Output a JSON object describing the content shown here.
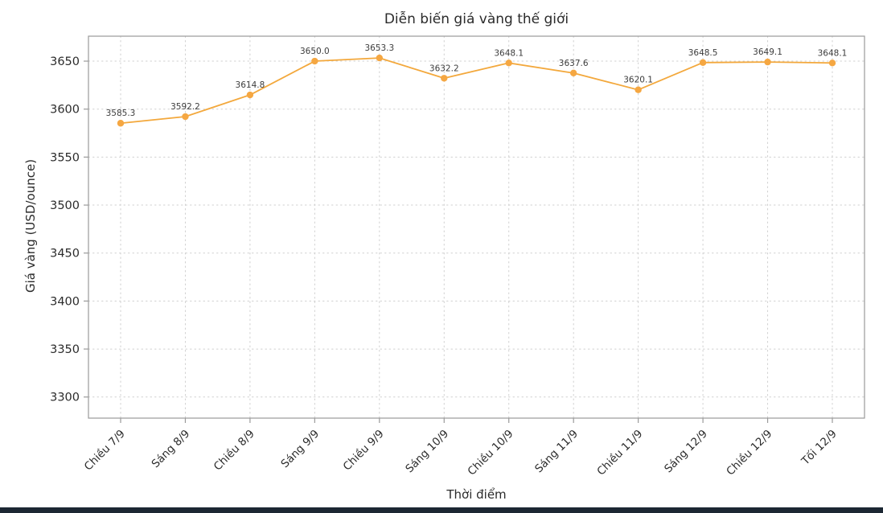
{
  "chart_data": {
    "type": "line",
    "title": "Diễn biến giá vàng thế giới",
    "xlabel": "Thời điểm",
    "ylabel": "Giá vàng (USD/ounce)",
    "categories": [
      "Chiều 7/9",
      "Sáng 8/9",
      "Chiều 8/9",
      "Sáng 9/9",
      "Chiều 9/9",
      "Sáng 10/9",
      "Chiều 10/9",
      "Sáng 11/9",
      "Chiều 11/9",
      "Sáng 12/9",
      "Chiều 12/9",
      "Tối 12/9"
    ],
    "values": [
      3585.3,
      3592.2,
      3614.8,
      3650.0,
      3653.3,
      3632.2,
      3648.1,
      3637.6,
      3620.1,
      3648.5,
      3649.1,
      3648.1
    ],
    "value_labels": [
      "3585.3",
      "3592.2",
      "3614.8",
      "3650.0",
      "3653.3",
      "3632.2",
      "3648.1",
      "3637.6",
      "3620.1",
      "3648.5",
      "3649.1",
      "3648.1"
    ],
    "ylim": [
      3278,
      3676
    ],
    "yticks": [
      3300,
      3350,
      3400,
      3450,
      3500,
      3550,
      3600,
      3650
    ],
    "grid": true,
    "legend": "none",
    "line_color": "#f3a83c",
    "marker_color": "#f5a742",
    "grid_color": "#cfcfcf",
    "axis_color": "#9a9a9a",
    "tick_label_color": "#2b2b2b",
    "point_label_color": "#3c3c3c"
  }
}
